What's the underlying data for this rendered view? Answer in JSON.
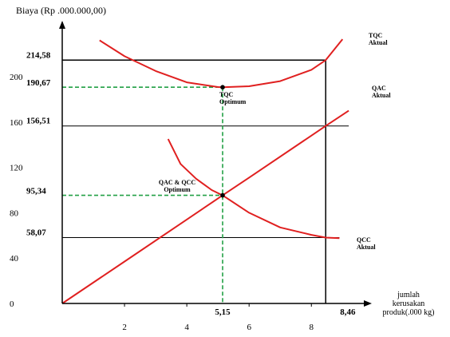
{
  "chart_data": {
    "type": "line",
    "title": "",
    "ylabel": "Biaya (Rp .000.000,00)",
    "xlabel": "jumlah kerusakan produk(.000 kg)",
    "xlabel_lines": [
      "jumlah",
      "kerusakan",
      "produk(.000 kg)"
    ],
    "xlim": [
      0,
      9.3
    ],
    "ylim": [
      0,
      238
    ],
    "x_ticks": [
      2,
      4,
      6,
      8
    ],
    "x_tick_labels": [
      "2",
      "4",
      "6",
      "8"
    ],
    "y_ticks": [
      0,
      40,
      80,
      120,
      160,
      200
    ],
    "y_tick_labels": [
      "0",
      "40",
      "80",
      "120",
      "160",
      "200"
    ],
    "grid": false,
    "legend": "none",
    "colors": {
      "curves": "#e02020",
      "optimum_guides": "#22a045",
      "lines": "#000000"
    },
    "series": [
      {
        "name": "TQC Aktual",
        "name_lines": [
          "TQC",
          "Aktual"
        ],
        "x": [
          1.2,
          2,
          3,
          4,
          5,
          5.15,
          6,
          7,
          8,
          8.46,
          9
        ],
        "y": [
          232,
          218,
          205,
          195,
          190.8,
          190.67,
          191.5,
          196,
          206,
          214.58,
          233
        ]
      },
      {
        "name": "QAC Aktual",
        "name_lines": [
          "QAC",
          "Aktual"
        ],
        "x": [
          0,
          2,
          4,
          5.15,
          6,
          8,
          8.46,
          9.2
        ],
        "y": [
          0,
          37,
          74,
          95.34,
          111,
          148,
          156.51,
          170
        ]
      },
      {
        "name": "QCC Aktual",
        "name_lines": [
          "QCC",
          "Aktual"
        ],
        "x": [
          3.4,
          3.8,
          4.3,
          4.8,
          5.15,
          6,
          7,
          8,
          8.46,
          8.9
        ],
        "y": [
          145,
          123,
          110,
          100,
          95.34,
          80,
          67,
          60.5,
          58.07,
          57.5
        ]
      }
    ],
    "reference_lines": [
      {
        "y": 214.58,
        "label": "214,58",
        "x_end": 8.46
      },
      {
        "y": 156.51,
        "label": "156,51",
        "x_end": 9.2
      },
      {
        "y": 58.07,
        "label": "58,07",
        "x_end": 8.9
      }
    ],
    "optimum_guides": [
      {
        "y": 190.67,
        "label": "190,67"
      },
      {
        "y": 95.34,
        "label": "95,34"
      }
    ],
    "optimum_x": {
      "x": 5.15,
      "label": "5,15"
    },
    "actual_x": {
      "x": 8.46,
      "label": "8,46"
    },
    "annotations": [
      {
        "text_lines": [
          "TQC",
          "Optimum"
        ],
        "x": 5.15,
        "y": 190.67
      },
      {
        "text_lines": [
          "QAC & QCC",
          "Optimum"
        ],
        "x": 5.15,
        "y": 95.34
      }
    ]
  }
}
